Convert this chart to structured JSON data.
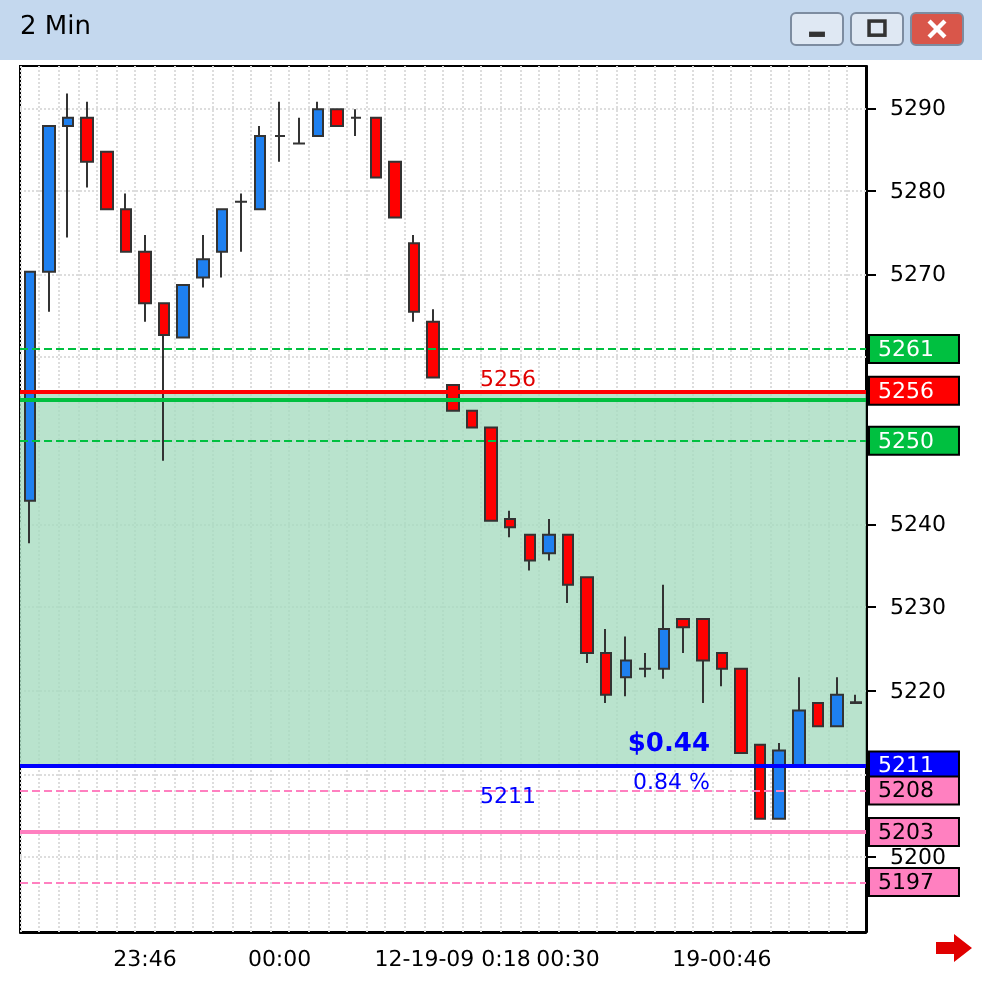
{
  "chart_data": {
    "type": "candlestick",
    "title": "2 Min",
    "categories": [
      null,
      null,
      null,
      null,
      null,
      null,
      "23:46",
      null,
      null,
      null,
      null,
      null,
      null,
      "00:00",
      null,
      null,
      null,
      null,
      null,
      null,
      null,
      null,
      "12-19-09 0:18",
      null,
      null,
      null,
      null,
      null,
      "00:30",
      null,
      null,
      null,
      null,
      null,
      null,
      null,
      "19-00:46",
      null,
      null,
      null,
      null,
      null,
      null,
      null
    ],
    "ohlc": [
      [
        5242.8,
        5270.3,
        5237.7,
        5270.3
      ],
      [
        5270.3,
        5287.8,
        5265.5,
        5287.8
      ],
      [
        5287.8,
        5291.7,
        5274.4,
        5288.8
      ],
      [
        5288.8,
        5290.7,
        5280.4,
        5283.5
      ],
      [
        5284.7,
        5284.7,
        5277.8,
        5277.8
      ],
      [
        5277.8,
        5279.7,
        5272.7,
        5272.7
      ],
      [
        5272.7,
        5274.7,
        5264.3,
        5266.5
      ],
      [
        5266.5,
        5266.5,
        5247.6,
        5262.7
      ],
      [
        5262.4,
        5268.7,
        5262.4,
        5268.7
      ],
      [
        5269.6,
        5274.7,
        5268.4,
        5271.8
      ],
      [
        5272.7,
        5277.8,
        5269.6,
        5277.8
      ],
      [
        5278.7,
        5279.7,
        5272.7,
        5278.7
      ],
      [
        5277.8,
        5287.8,
        5277.8,
        5286.6
      ],
      [
        5286.6,
        5290.7,
        5283.5,
        5286.6
      ],
      [
        5285.7,
        5288.8,
        5285.7,
        5285.7
      ],
      [
        5286.6,
        5290.7,
        5286.6,
        5289.8
      ],
      [
        5289.8,
        5289.8,
        5287.8,
        5287.8
      ],
      [
        5288.8,
        5289.8,
        5286.6,
        5288.8
      ],
      [
        5288.8,
        5288.8,
        5281.6,
        5281.6
      ],
      [
        5283.5,
        5283.5,
        5276.8,
        5276.8
      ],
      [
        5273.7,
        5274.7,
        5264.3,
        5265.5
      ],
      [
        5264.3,
        5265.8,
        5257.6,
        5257.6
      ],
      [
        5256.7,
        5256.7,
        5253.6,
        5253.6
      ],
      [
        5253.6,
        5253.6,
        5251.6,
        5251.6
      ],
      [
        5251.6,
        5251.6,
        5240.4,
        5240.4
      ],
      [
        5240.6,
        5241.6,
        5238.4,
        5239.6
      ],
      [
        5238.7,
        5238.7,
        5234.4,
        5235.6
      ],
      [
        5236.5,
        5240.6,
        5235.6,
        5238.7
      ],
      [
        5238.7,
        5238.7,
        5230.5,
        5232.7
      ],
      [
        5233.6,
        5233.6,
        5223.3,
        5224.5
      ],
      [
        5224.5,
        5227.4,
        5218.5,
        5219.5
      ],
      [
        5221.6,
        5226.5,
        5219.3,
        5223.6
      ],
      [
        5222.6,
        5224.5,
        5221.6,
        5222.6
      ],
      [
        5222.6,
        5232.7,
        5221.4,
        5227.4
      ],
      [
        5228.6,
        5228.6,
        5224.5,
        5227.6
      ],
      [
        5228.6,
        5228.6,
        5218.5,
        5223.6
      ],
      [
        5224.5,
        5224.5,
        5220.5,
        5222.6
      ],
      [
        5222.6,
        5222.6,
        5212.5,
        5212.5
      ],
      [
        5213.5,
        5213.5,
        5204.6,
        5204.6
      ],
      [
        5204.6,
        5213.7,
        5204.6,
        5212.8
      ],
      [
        5210.9,
        5221.6,
        5210.9,
        5217.6
      ],
      [
        5218.5,
        5218.5,
        5215.7,
        5215.7
      ],
      [
        5215.7,
        5221.6,
        5215.7,
        5219.5
      ],
      [
        5218.5,
        5219.5,
        5218.4,
        5218.6
      ]
    ],
    "ylim": [
      5191,
      5295
    ],
    "yticks": [
      5200,
      {
        "value": 5210,
        "label": null
      },
      5220,
      5230,
      5240,
      {
        "value": 5250,
        "label": null
      },
      {
        "value": 5260,
        "label": null
      },
      5270,
      5280,
      5290
    ],
    "grid": true,
    "ref_lines": [
      {
        "axis": "y",
        "value": 5261,
        "label": "5261",
        "color": "#00c040",
        "line_style": "dashed"
      },
      {
        "axis": "y",
        "value": 5256,
        "label": "5256",
        "color": "#ff0000",
        "line_style": "solid"
      },
      {
        "axis": "y",
        "value": 5255,
        "label": null,
        "color": "#00c040",
        "line_style": "solid"
      },
      {
        "axis": "y",
        "value": 5250,
        "label": "5250",
        "color": "#00c040",
        "line_style": "dashed"
      },
      {
        "axis": "y",
        "value": 5211,
        "label": "5211",
        "color": "#0000ff",
        "line_style": "solid"
      },
      {
        "axis": "y",
        "value": 5208,
        "label": "5208",
        "color": "#ff80c0",
        "line_style": "dashed"
      },
      {
        "axis": "y",
        "value": 5203,
        "label": "5203",
        "color": "#ff80c0",
        "line_style": "solid"
      },
      {
        "axis": "y",
        "value": 5197,
        "label": "5197",
        "color": "#ff80c0",
        "line_style": "dashed"
      }
    ],
    "bands": [
      {
        "axis": "y",
        "from": 5211,
        "to": 5256,
        "color": "#a8dcc0"
      }
    ],
    "annotations": [
      {
        "text": "5256",
        "y": 5257
      },
      {
        "text": "5211",
        "y": 5207
      },
      "$0.44",
      "0.84 %"
    ]
  }
}
